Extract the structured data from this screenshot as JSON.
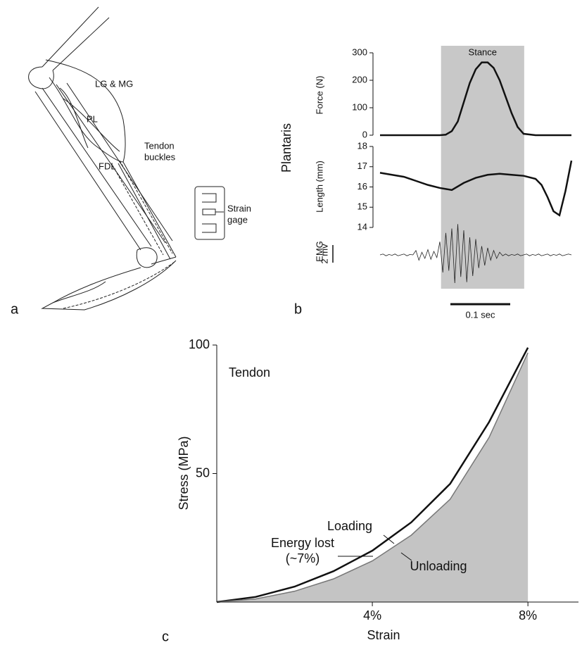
{
  "panel_labels": [
    "a",
    "b",
    "c"
  ],
  "diagram": {
    "labels": [
      {
        "lines": [
          "LG & MG"
        ]
      },
      {
        "lines": [
          "PL"
        ]
      },
      {
        "lines": [
          "FDL"
        ]
      },
      {
        "lines": [
          "Tendon",
          "buckles"
        ]
      },
      {
        "lines": [
          "Strain",
          "gage"
        ]
      }
    ]
  },
  "panel_b": {
    "muscle": "Plantaris",
    "stance": {
      "label": "Stance",
      "xrange": [
        0.102,
        0.241
      ]
    },
    "time_scale": {
      "label": "0.1 sec",
      "length": 0.1
    },
    "emg_scale": {
      "label": "2 mv",
      "length": 2
    }
  },
  "chart_data": [
    {
      "type": "line",
      "ylabel": "Force (N)",
      "x": [
        0,
        0.02,
        0.04,
        0.06,
        0.08,
        0.1,
        0.11,
        0.12,
        0.13,
        0.14,
        0.15,
        0.16,
        0.17,
        0.18,
        0.19,
        0.2,
        0.21,
        0.22,
        0.23,
        0.24,
        0.26,
        0.28,
        0.3,
        0.32
      ],
      "series": [
        {
          "color": "#111111",
          "values": [
            0,
            0,
            0,
            0,
            0,
            0,
            2,
            15,
            50,
            120,
            190,
            240,
            265,
            265,
            245,
            200,
            140,
            80,
            30,
            5,
            0,
            0,
            0,
            0
          ]
        }
      ],
      "ylim": [
        0,
        300
      ],
      "yticks": [
        0,
        100,
        200,
        300
      ]
    },
    {
      "type": "line",
      "ylabel": "Length (mm)",
      "x": [
        0,
        0.02,
        0.04,
        0.06,
        0.08,
        0.1,
        0.12,
        0.14,
        0.16,
        0.18,
        0.2,
        0.22,
        0.24,
        0.26,
        0.27,
        0.28,
        0.29,
        0.3,
        0.31,
        0.32
      ],
      "series": [
        {
          "color": "#111111",
          "values": [
            16.7,
            16.6,
            16.5,
            16.3,
            16.1,
            15.95,
            15.85,
            16.2,
            16.45,
            16.6,
            16.65,
            16.6,
            16.55,
            16.4,
            16.1,
            15.5,
            14.8,
            14.6,
            15.8,
            17.3
          ]
        }
      ],
      "ylim": [
        14,
        18
      ],
      "yticks": [
        14,
        15,
        16,
        17,
        18
      ]
    },
    {
      "type": "trace",
      "ylabel": "EMG",
      "x": [
        0,
        0.005,
        0.01,
        0.015,
        0.02,
        0.025,
        0.03,
        0.035,
        0.04,
        0.045,
        0.05,
        0.055,
        0.06,
        0.065,
        0.07,
        0.075,
        0.08,
        0.085,
        0.09,
        0.095,
        0.1,
        0.105,
        0.11,
        0.115,
        0.12,
        0.125,
        0.13,
        0.135,
        0.14,
        0.145,
        0.15,
        0.155,
        0.16,
        0.165,
        0.17,
        0.175,
        0.18,
        0.185,
        0.19,
        0.195,
        0.2,
        0.205,
        0.21,
        0.215,
        0.22,
        0.225,
        0.23,
        0.235,
        0.24,
        0.245,
        0.25,
        0.255,
        0.26,
        0.265,
        0.27,
        0.275,
        0.28,
        0.285,
        0.29,
        0.295,
        0.3,
        0.305,
        0.31,
        0.315,
        0.32
      ],
      "series": [
        {
          "color": "#222222",
          "values": [
            0,
            0.1,
            -0.1,
            0.05,
            -0.05,
            0.1,
            -0.1,
            0,
            0.1,
            -0.1,
            0.05,
            0,
            0.5,
            -0.6,
            0.3,
            -0.4,
            0.6,
            -0.5,
            0.4,
            -0.3,
            1.5,
            -2,
            2.5,
            -1.8,
            3,
            -3.2,
            3.5,
            -2.5,
            2.8,
            -3.1,
            2,
            -2.4,
            1.8,
            -1.5,
            1,
            -1.2,
            0.8,
            -0.6,
            0.5,
            -0.4,
            0.3,
            -0.1,
            0.1,
            -0.1,
            0.05,
            -0.05,
            0.1,
            -0.1,
            0,
            0.1,
            -0.1,
            0.05,
            -0.05,
            0.1,
            -0.1,
            0,
            0.1,
            -0.1,
            0.05,
            -0.05,
            0.1,
            -0.1,
            0,
            0.1,
            0
          ]
        }
      ]
    },
    {
      "type": "line",
      "xlabel": "Strain",
      "ylabel": "Stress (MPa)",
      "annotations": [
        {
          "lines": [
            "Tendon"
          ]
        },
        {
          "lines": [
            "Loading"
          ]
        },
        {
          "lines": [
            "Energy lost",
            "(~7%)"
          ]
        },
        {
          "lines": [
            "Unloading"
          ]
        }
      ],
      "x": [
        0,
        1,
        2,
        3,
        4,
        5,
        6,
        7,
        8
      ],
      "series": [
        {
          "name": "Loading",
          "color": "#111111",
          "values": [
            0,
            2,
            6,
            12,
            20,
            31,
            46,
            70,
            99
          ]
        },
        {
          "name": "Unloading",
          "color": "#777777",
          "fill": "#c4c4c4",
          "values": [
            0,
            1.2,
            4.2,
            9,
            16,
            26,
            40,
            64,
            97
          ]
        }
      ],
      "xlim": [
        0,
        9.3
      ],
      "ylim": [
        0,
        100
      ],
      "xticks": [
        {
          "value": 4,
          "label": "4%"
        },
        {
          "value": 8,
          "label": "8%"
        }
      ],
      "yticks": [
        50,
        100
      ]
    }
  ]
}
